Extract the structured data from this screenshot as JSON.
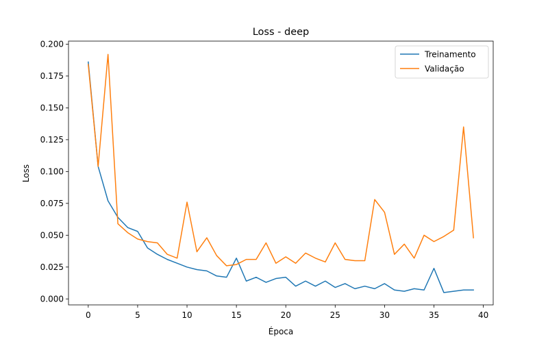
{
  "chart_data": {
    "type": "line",
    "title": "Loss - deep",
    "xlabel": "Época",
    "ylabel": "Loss",
    "xlim": [
      -2,
      41
    ],
    "ylim": [
      -0.0047,
      0.2024
    ],
    "xticks": [
      0,
      5,
      10,
      15,
      20,
      25,
      30,
      35,
      40
    ],
    "xtick_labels": [
      "0",
      "5",
      "10",
      "15",
      "20",
      "25",
      "30",
      "35",
      "40"
    ],
    "yticks": [
      0.0,
      0.025,
      0.05,
      0.075,
      0.1,
      0.125,
      0.15,
      0.175,
      0.2
    ],
    "ytick_labels": [
      "0.000",
      "0.025",
      "0.050",
      "0.075",
      "0.100",
      "0.125",
      "0.150",
      "0.175",
      "0.200"
    ],
    "grid": false,
    "legend_position": "top-right",
    "x": [
      0,
      1,
      2,
      3,
      4,
      5,
      6,
      7,
      8,
      9,
      10,
      11,
      12,
      13,
      14,
      15,
      16,
      17,
      18,
      19,
      20,
      21,
      22,
      23,
      24,
      25,
      26,
      27,
      28,
      29,
      30,
      31,
      32,
      33,
      34,
      35,
      36,
      37,
      38,
      39
    ],
    "series": [
      {
        "name": "Treinamento",
        "color": "#1f77b4",
        "values": [
          0.186,
          0.104,
          0.077,
          0.064,
          0.056,
          0.053,
          0.04,
          0.035,
          0.031,
          0.028,
          0.025,
          0.023,
          0.022,
          0.018,
          0.017,
          0.032,
          0.014,
          0.017,
          0.013,
          0.016,
          0.017,
          0.01,
          0.014,
          0.01,
          0.014,
          0.009,
          0.012,
          0.008,
          0.01,
          0.008,
          0.012,
          0.007,
          0.006,
          0.008,
          0.007,
          0.024,
          0.005,
          0.006,
          0.007,
          0.007
        ]
      },
      {
        "name": "Validação",
        "color": "#ff7f0e",
        "values": [
          0.184,
          0.104,
          0.192,
          0.059,
          0.052,
          0.047,
          0.045,
          0.044,
          0.035,
          0.032,
          0.076,
          0.037,
          0.048,
          0.034,
          0.026,
          0.027,
          0.031,
          0.031,
          0.044,
          0.028,
          0.033,
          0.028,
          0.036,
          0.032,
          0.029,
          0.044,
          0.031,
          0.03,
          0.03,
          0.078,
          0.068,
          0.035,
          0.043,
          0.032,
          0.05,
          0.045,
          0.049,
          0.054,
          0.135,
          0.048
        ]
      }
    ]
  }
}
